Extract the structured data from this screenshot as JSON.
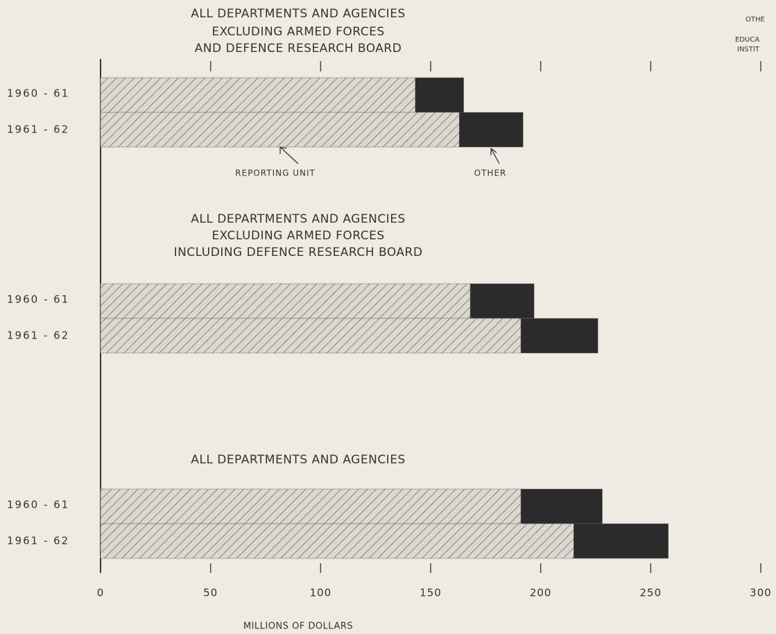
{
  "chart_data": {
    "type": "bar",
    "orientation": "horizontal",
    "stacked": true,
    "xlabel": "MILLIONS OF DOLLARS",
    "xlim": [
      0,
      300
    ],
    "xticks": [
      0,
      50,
      100,
      150,
      200,
      250,
      300
    ],
    "panels": [
      {
        "title": [
          "ALL DEPARTMENTS AND AGENCIES",
          "EXCLUDING ARMED FORCES",
          "AND DEFENCE RESEARCH BOARD"
        ]
      },
      {
        "title": [
          "ALL DEPARTMENTS AND AGENCIES",
          "EXCLUDING ARMED FORCES",
          "INCLUDING DEFENCE RESEARCH BOARD"
        ]
      },
      {
        "title": [
          "ALL DEPARTMENTS AND AGENCIES"
        ]
      }
    ],
    "categories": [
      "1960 - 61",
      "1961 - 62",
      "1960 - 61",
      "1961 - 62",
      "1960 - 61",
      "1961 - 62"
    ],
    "series": [
      {
        "name": "REPORTING UNIT",
        "color": "#d8d4cc",
        "values": [
          143,
          163,
          168,
          191,
          191,
          215
        ]
      },
      {
        "name": "OTHER",
        "color": "#2b2b2b",
        "values": [
          22,
          29,
          29,
          35,
          37,
          43
        ]
      }
    ],
    "annotations": [
      "OTHE",
      "EDUCA",
      "INSTIT"
    ]
  }
}
